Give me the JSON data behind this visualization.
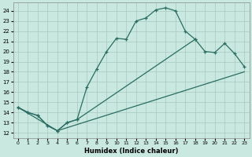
{
  "xlabel": "Humidex (Indice chaleur)",
  "xlim": [
    -0.5,
    23.5
  ],
  "ylim": [
    11.5,
    24.8
  ],
  "xticks": [
    0,
    1,
    2,
    3,
    4,
    5,
    6,
    7,
    8,
    9,
    10,
    11,
    12,
    13,
    14,
    15,
    16,
    17,
    18,
    19,
    20,
    21,
    22,
    23
  ],
  "yticks": [
    12,
    13,
    14,
    15,
    16,
    17,
    18,
    19,
    20,
    21,
    22,
    23,
    24
  ],
  "bg_color": "#c8e8e0",
  "grid_color": "#a8c8c0",
  "line_color": "#2a6e62",
  "curve1": {
    "x": [
      0,
      1,
      2,
      3,
      4,
      5,
      6,
      7,
      8,
      9,
      10,
      11,
      12,
      13,
      14,
      15,
      16,
      17,
      18
    ],
    "y": [
      14.5,
      14.0,
      13.7,
      12.7,
      12.2,
      13.0,
      13.3,
      16.5,
      18.3,
      20.0,
      21.3,
      21.2,
      23.0,
      23.3,
      24.1,
      24.3,
      24.0,
      22.0,
      21.2
    ]
  },
  "curve2": {
    "x": [
      0,
      1,
      2,
      3,
      4,
      5,
      6,
      18,
      19,
      20,
      21,
      22,
      23
    ],
    "y": [
      14.5,
      14.0,
      13.7,
      12.7,
      12.2,
      13.0,
      13.3,
      21.2,
      20.0,
      19.9,
      20.8,
      19.8,
      18.5
    ]
  },
  "curve3": {
    "x": [
      0,
      4,
      23
    ],
    "y": [
      14.5,
      12.2,
      18.0
    ]
  }
}
